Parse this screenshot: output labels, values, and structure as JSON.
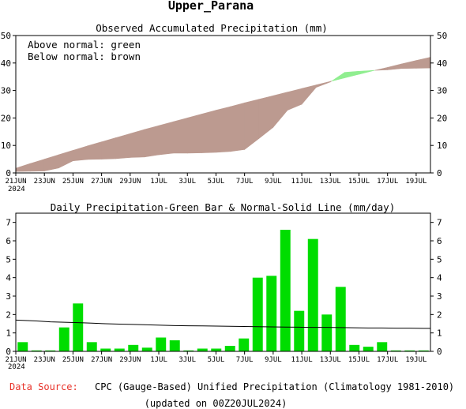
{
  "title": "Upper_Parana",
  "colors": {
    "above": "#90ee90",
    "below": "#bc9a90",
    "bar": "#00dd00",
    "normal_line": "#000000",
    "source_label": "#e8332a"
  },
  "footer": {
    "source_label": "Data Source:",
    "source_text": "CPC (Gauge-Based) Unified Precipitation (Climatology 1981-2010)",
    "updated": "(updated on 00Z20JUL2024)"
  },
  "chart_data": [
    {
      "type": "area",
      "title": "Observed Accumulated Precipitation (mm)",
      "annotations": [
        "Above normal: green",
        "Below normal: brown"
      ],
      "x_tick_labels": [
        "21JUN",
        "23JUN",
        "25JUN",
        "27JUN",
        "29JUN",
        "1JUL",
        "3JUL",
        "5JUL",
        "7JUL",
        "9JUL",
        "11JUL",
        "13JUL",
        "15JUL",
        "17JUL",
        "19JUL"
      ],
      "x_year_label": "2024",
      "ylim": [
        0,
        50
      ],
      "y_ticks": [
        0,
        10,
        20,
        30,
        40,
        50
      ],
      "grid": false,
      "series": [
        {
          "name": "Observed",
          "values": [
            0.5,
            0.6,
            0.7,
            1.8,
            4.4,
            4.9,
            5.0,
            5.2,
            5.6,
            5.8,
            6.6,
            7.2,
            7.2,
            7.3,
            7.5,
            7.8,
            8.5,
            12.5,
            16.6,
            22.8,
            25.0,
            31.1,
            33.1,
            36.6,
            37.0,
            37.3,
            37.5,
            38.0,
            38.1,
            38.2
          ]
        },
        {
          "name": "Normal",
          "values": [
            1.7,
            3.4,
            5.0,
            6.6,
            8.2,
            9.8,
            11.3,
            12.8,
            14.3,
            15.8,
            17.2,
            18.6,
            20.0,
            21.4,
            22.8,
            24.1,
            25.5,
            26.8,
            28.1,
            29.4,
            30.7,
            32.0,
            33.3,
            34.6,
            35.9,
            37.2,
            38.4,
            39.7,
            40.9,
            42.1
          ]
        }
      ]
    },
    {
      "type": "bar",
      "title": "Daily Precipitation-Green Bar & Normal-Solid Line (mm/day)",
      "x_tick_labels": [
        "21JUN",
        "23JUN",
        "25JUN",
        "27JUN",
        "29JUN",
        "1JUL",
        "3JUL",
        "5JUL",
        "7JUL",
        "9JUL",
        "11JUL",
        "13JUL",
        "15JUL",
        "17JUL",
        "19JUL"
      ],
      "x_year_label": "2024",
      "ylim": [
        0,
        7.5
      ],
      "y_ticks": [
        0,
        1,
        2,
        3,
        4,
        5,
        6,
        7
      ],
      "grid": false,
      "series": [
        {
          "name": "Daily",
          "values": [
            0.5,
            0.05,
            0.05,
            1.3,
            2.6,
            0.5,
            0.15,
            0.15,
            0.35,
            0.2,
            0.75,
            0.6,
            0.05,
            0.15,
            0.15,
            0.3,
            0.7,
            4.0,
            4.1,
            6.6,
            2.2,
            6.1,
            2.0,
            3.5,
            0.35,
            0.25,
            0.5,
            0.05,
            0.05,
            0.05
          ]
        },
        {
          "name": "Normal",
          "values": [
            1.7,
            1.65,
            1.6,
            1.58,
            1.56,
            1.53,
            1.5,
            1.48,
            1.46,
            1.44,
            1.42,
            1.4,
            1.39,
            1.38,
            1.37,
            1.36,
            1.35,
            1.34,
            1.33,
            1.32,
            1.31,
            1.3,
            1.3,
            1.29,
            1.28,
            1.27,
            1.27,
            1.26,
            1.26,
            1.25
          ]
        }
      ]
    }
  ]
}
